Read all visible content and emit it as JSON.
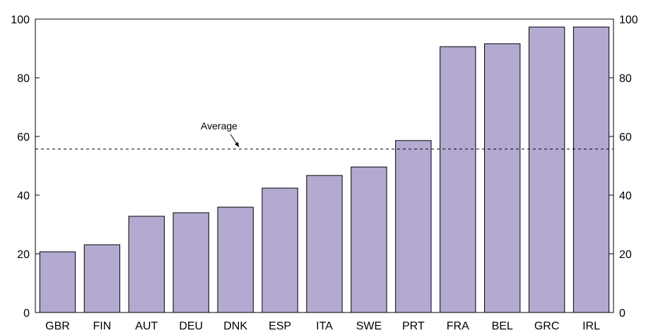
{
  "chart_data": {
    "type": "bar",
    "categories": [
      "GBR",
      "FIN",
      "AUT",
      "DEU",
      "DNK",
      "ESP",
      "ITA",
      "SWE",
      "PRT",
      "FRA",
      "BEL",
      "GRC",
      "IRL"
    ],
    "values": [
      20.7,
      23.1,
      32.8,
      34,
      35.9,
      42.4,
      46.7,
      49.6,
      58.6,
      90.6,
      91.6,
      97.3,
      97.3
    ],
    "color": "#b3a9d1",
    "ylim": [
      0,
      100
    ],
    "yticks": [
      0,
      20,
      40,
      60,
      80,
      100
    ],
    "y2lim": [
      0,
      100
    ],
    "y2ticks": [
      0,
      20,
      40,
      60,
      80,
      100
    ],
    "average": {
      "value": 55.7,
      "label": "Average"
    },
    "grid": false
  }
}
